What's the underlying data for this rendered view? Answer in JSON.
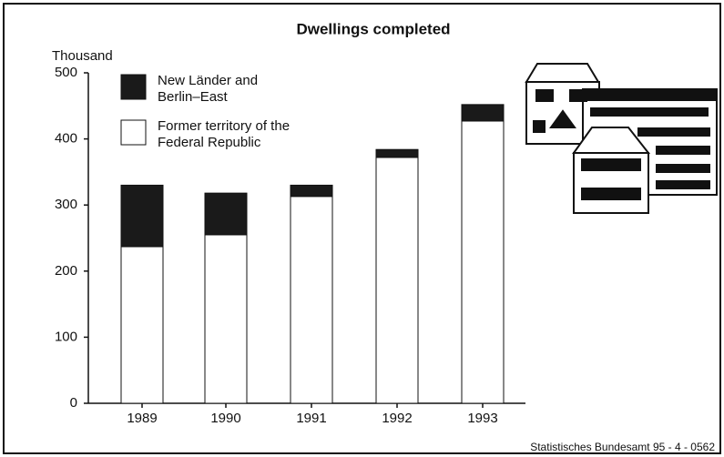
{
  "chart_data": {
    "type": "stacked_bar",
    "title": "Dwellings completed",
    "y_label": "Thousand",
    "categories": [
      "1989",
      "1990",
      "1991",
      "1992",
      "1993"
    ],
    "series": [
      {
        "name": "Former territory of the Federal Republic",
        "color": "#ffffff",
        "values": [
          237,
          255,
          313,
          372,
          427
        ]
      },
      {
        "name": "New Länder and Berlin–East",
        "color": "#1a1a1a",
        "values": [
          93,
          63,
          17,
          12,
          25
        ]
      }
    ],
    "ylim": [
      0,
      500
    ],
    "yticks": [
      0,
      100,
      200,
      300,
      400,
      500
    ],
    "grid": false,
    "source": "Statistisches Bundesamt 95 - 4 - 0562"
  }
}
